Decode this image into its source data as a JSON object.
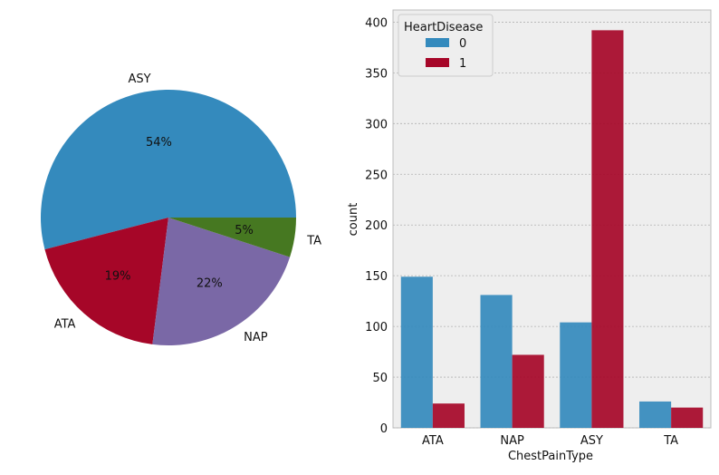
{
  "chart_data": [
    {
      "type": "pie",
      "labels": [
        "ASY",
        "ATA",
        "NAP",
        "TA"
      ],
      "values": [
        54,
        19,
        22,
        5
      ],
      "pct_labels": [
        "54%",
        "19%",
        "22%",
        "5%"
      ],
      "colors": [
        "#348abd",
        "#a60628",
        "#7a68a6",
        "#467821"
      ]
    },
    {
      "type": "bar",
      "categories": [
        "ATA",
        "NAP",
        "ASY",
        "TA"
      ],
      "series": [
        {
          "name": "0",
          "values": [
            149,
            131,
            104,
            26
          ],
          "color": "#348abd"
        },
        {
          "name": "1",
          "values": [
            24,
            72,
            392,
            20
          ],
          "color": "#a60628"
        }
      ],
      "xlabel": "ChestPainType",
      "ylabel": "count",
      "ylim": [
        0,
        412
      ],
      "yticks": [
        0,
        50,
        100,
        150,
        200,
        250,
        300,
        350,
        400
      ],
      "grid": true,
      "legend": {
        "title": "HeartDisease",
        "position": "top-left"
      }
    }
  ]
}
